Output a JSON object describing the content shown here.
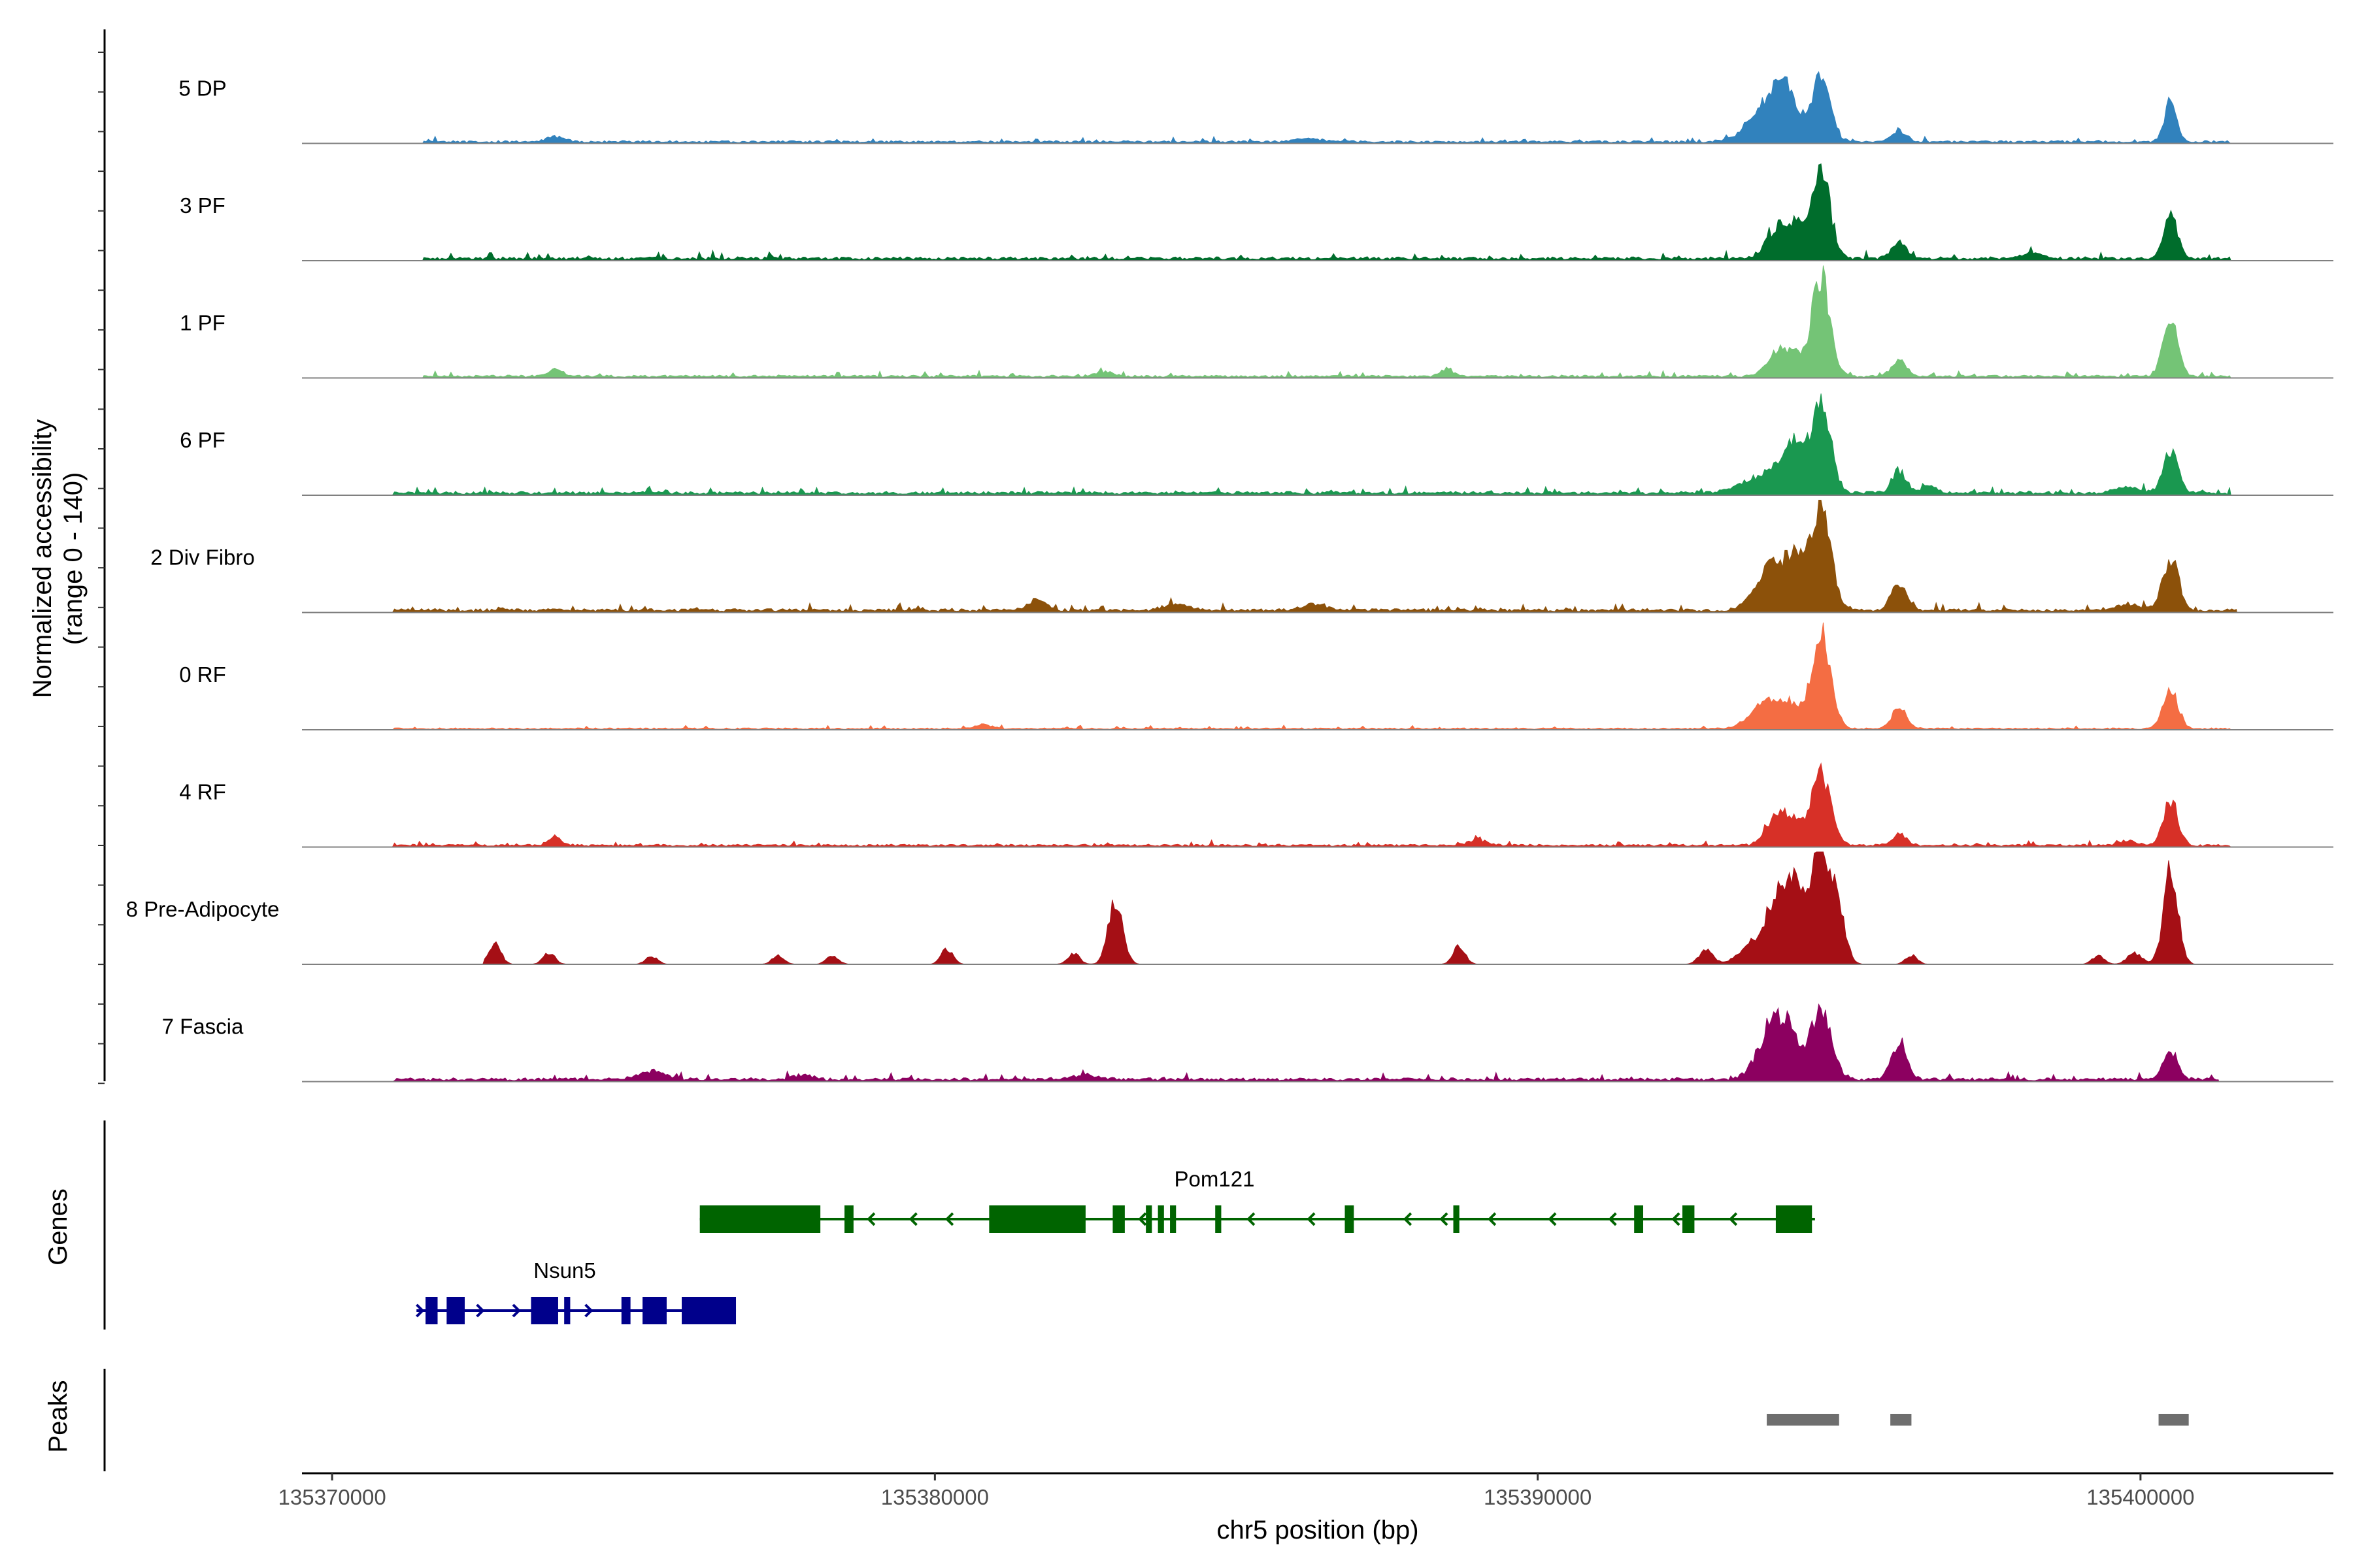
{
  "chart_data": {
    "type": "area",
    "chromosome": "chr5",
    "xlabel": "chr5 position (bp)",
    "xlim": [
      135369500,
      135403200
    ],
    "x_ticks": [
      135370000,
      135380000,
      135390000,
      135400000
    ],
    "x_tick_labels": [
      "135370000",
      "135380000",
      "135390000",
      "135400000"
    ],
    "ylabel_coverage": "Normalized accessibility",
    "ylabel_range": "(range 0 - 140)",
    "ylim": [
      0,
      140
    ],
    "tracks": [
      {
        "name": "5 DP",
        "color": "#3182bd",
        "baseline": 3,
        "noise_start": 135371500,
        "noise_end": 135401500,
        "peaks": [
          [
            135393800,
            300,
            45
          ],
          [
            135394100,
            200,
            55
          ],
          [
            135394700,
            150,
            85
          ],
          [
            135396000,
            120,
            15
          ],
          [
            135400500,
            100,
            55
          ],
          [
            135373700,
            150,
            6
          ],
          [
            135386200,
            200,
            4
          ]
        ]
      },
      {
        "name": "3 PF",
        "color": "#006d2c",
        "baseline": 4,
        "noise_start": 135371500,
        "noise_end": 135401500,
        "peaks": [
          [
            135394000,
            180,
            45
          ],
          [
            135394300,
            120,
            35
          ],
          [
            135394700,
            150,
            120
          ],
          [
            135396000,
            120,
            22
          ],
          [
            135400500,
            120,
            55
          ],
          [
            135398200,
            150,
            8
          ]
        ]
      },
      {
        "name": "1 PF",
        "color": "#74c476",
        "baseline": 3,
        "noise_start": 135371500,
        "noise_end": 135401500,
        "peaks": [
          [
            135394000,
            180,
            35
          ],
          [
            135394300,
            120,
            22
          ],
          [
            135394700,
            150,
            130
          ],
          [
            135396000,
            120,
            22
          ],
          [
            135400500,
            120,
            80
          ],
          [
            135373700,
            120,
            10
          ],
          [
            135382800,
            150,
            6
          ],
          [
            135388500,
            100,
            10
          ]
        ]
      },
      {
        "name": "6 PF",
        "color": "#1a9850",
        "baseline": 4,
        "noise_start": 135371000,
        "noise_end": 135401500,
        "peaks": [
          [
            135393500,
            250,
            15
          ],
          [
            135394000,
            200,
            40
          ],
          [
            135394300,
            150,
            55
          ],
          [
            135394700,
            160,
            115
          ],
          [
            135396000,
            120,
            30
          ],
          [
            135396500,
            120,
            10
          ],
          [
            135400500,
            120,
            60
          ],
          [
            135399800,
            200,
            8
          ]
        ]
      },
      {
        "name": "2 Div Fibro",
        "color": "#8c510a",
        "baseline": 4,
        "noise_start": 135371000,
        "noise_end": 135401600,
        "peaks": [
          [
            135393900,
            250,
            65
          ],
          [
            135394300,
            150,
            55
          ],
          [
            135394700,
            160,
            140
          ],
          [
            135396000,
            130,
            35
          ],
          [
            135400500,
            130,
            70
          ],
          [
            135381700,
            150,
            15
          ],
          [
            135384000,
            200,
            8
          ],
          [
            135386300,
            200,
            8
          ],
          [
            135399800,
            200,
            8
          ]
        ]
      },
      {
        "name": "0 RF",
        "color": "#f46d43",
        "baseline": 2,
        "noise_start": 135371000,
        "noise_end": 135401500,
        "peaks": [
          [
            135393800,
            250,
            35
          ],
          [
            135394200,
            180,
            25
          ],
          [
            135394700,
            160,
            125
          ],
          [
            135396000,
            120,
            30
          ],
          [
            135400500,
            120,
            55
          ],
          [
            135380800,
            150,
            5
          ]
        ]
      },
      {
        "name": "4 RF",
        "color": "#d73027",
        "baseline": 3,
        "noise_start": 135371000,
        "noise_end": 135401500,
        "peaks": [
          [
            135394000,
            180,
            45
          ],
          [
            135394300,
            120,
            20
          ],
          [
            135394700,
            160,
            95
          ],
          [
            135396000,
            120,
            15
          ],
          [
            135400500,
            120,
            60
          ],
          [
            135373700,
            120,
            10
          ],
          [
            135389000,
            150,
            8
          ],
          [
            135399800,
            150,
            6
          ]
        ]
      },
      {
        "name": "8 Pre-Adipocyte",
        "color": "#a50f15",
        "baseline": 0,
        "noise_start": 135372500,
        "noise_end": 135401500,
        "spiky": true,
        "peaks": [
          [
            135394000,
            220,
            95
          ],
          [
            135394300,
            150,
            70
          ],
          [
            135394700,
            160,
            150
          ],
          [
            135395000,
            120,
            60
          ],
          [
            135393500,
            200,
            20
          ],
          [
            135392800,
            120,
            18
          ],
          [
            135396200,
            100,
            12
          ],
          [
            135400500,
            120,
            125
          ],
          [
            135399900,
            120,
            15
          ],
          [
            135399300,
            100,
            12
          ],
          [
            135383000,
            120,
            85
          ],
          [
            135382300,
            100,
            15
          ],
          [
            135380200,
            100,
            20
          ],
          [
            135388700,
            100,
            25
          ],
          [
            135372700,
            100,
            28
          ],
          [
            135373600,
            100,
            15
          ],
          [
            135375300,
            100,
            10
          ],
          [
            135377400,
            100,
            12
          ],
          [
            135378300,
            100,
            12
          ]
        ]
      },
      {
        "name": "7 Fascia",
        "color": "#8c0060",
        "baseline": 4,
        "noise_start": 135371000,
        "noise_end": 135401300,
        "peaks": [
          [
            135393900,
            230,
            75
          ],
          [
            135394200,
            150,
            40
          ],
          [
            135394700,
            170,
            95
          ],
          [
            135396000,
            130,
            50
          ],
          [
            135400500,
            120,
            40
          ],
          [
            135375300,
            200,
            12
          ],
          [
            135377800,
            150,
            6
          ],
          [
            135382500,
            200,
            6
          ]
        ]
      }
    ],
    "genes": [
      {
        "name": "Pom121",
        "color": "#006400",
        "strand": "-",
        "start": 135376100,
        "end": 135394600,
        "row": 0,
        "exons": [
          [
            135376100,
            135378100
          ],
          [
            135378500,
            135378650
          ],
          [
            135380900,
            135382500
          ],
          [
            135382950,
            135383150
          ],
          [
            135383500,
            135383600
          ],
          [
            135383700,
            135383800
          ],
          [
            135383900,
            135384000
          ],
          [
            135384650,
            135384750
          ],
          [
            135386800,
            135386950
          ],
          [
            135388600,
            135388700
          ],
          [
            135391600,
            135391750
          ],
          [
            135392400,
            135392600
          ],
          [
            135393950,
            135394550
          ]
        ],
        "arrows": [
          135378900,
          135379600,
          135380200,
          135383400,
          135385200,
          135386200,
          135387800,
          135388400,
          135389200,
          135390200,
          135391200,
          135392250,
          135393200
        ]
      },
      {
        "name": "Nsun5",
        "color": "#00008b",
        "strand": "+",
        "start": 135371400,
        "end": 135376700,
        "row": 1,
        "exons": [
          [
            135371550,
            135371750
          ],
          [
            135371900,
            135372200
          ],
          [
            135373300,
            135373750
          ],
          [
            135373850,
            135373950
          ],
          [
            135374800,
            135374950
          ],
          [
            135375150,
            135375550
          ],
          [
            135375800,
            135376700
          ]
        ],
        "arrows": [
          135371500,
          135372500,
          135373100,
          135374300
        ]
      }
    ],
    "genes_label": "Genes",
    "peaks_label": "Peaks",
    "peak_regions": [
      [
        135393800,
        135395000
      ],
      [
        135395850,
        135396200
      ],
      [
        135400300,
        135400800
      ]
    ]
  }
}
